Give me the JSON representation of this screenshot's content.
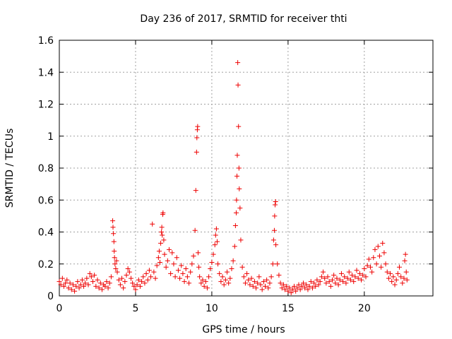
{
  "chart_data": {
    "type": "scatter",
    "title": "Day 236 of 2017, SRMTID for receiver thti",
    "xlabel": "GPS time / hours",
    "ylabel": "SRMTID / TECUs",
    "xlim": [
      0,
      24.5
    ],
    "ylim": [
      0,
      1.6
    ],
    "x_ticks": [
      0,
      5,
      10,
      15,
      20
    ],
    "x_tick_labels": [
      "0",
      "5",
      "10",
      "15",
      "20"
    ],
    "y_ticks": [
      0,
      0.2,
      0.4,
      0.6,
      0.8,
      1.0,
      1.2,
      1.4,
      1.6
    ],
    "y_tick_labels": [
      "0",
      "0.2",
      "0.4",
      "0.6",
      "0.8",
      "1",
      "1.2",
      "1.4",
      "1.6"
    ],
    "grid": true,
    "marker": "+",
    "color": "#ee0000",
    "series": [
      {
        "name": "SRMTID",
        "points": [
          [
            0.0,
            0.09
          ],
          [
            0.1,
            0.07
          ],
          [
            0.2,
            0.11
          ],
          [
            0.3,
            0.06
          ],
          [
            0.4,
            0.08
          ],
          [
            0.5,
            0.1
          ],
          [
            0.6,
            0.05
          ],
          [
            0.7,
            0.08
          ],
          [
            0.8,
            0.04
          ],
          [
            0.9,
            0.07
          ],
          [
            1.0,
            0.03
          ],
          [
            1.1,
            0.06
          ],
          [
            1.2,
            0.09
          ],
          [
            1.3,
            0.05
          ],
          [
            1.4,
            0.07
          ],
          [
            1.5,
            0.1
          ],
          [
            1.6,
            0.06
          ],
          [
            1.7,
            0.08
          ],
          [
            1.8,
            0.11
          ],
          [
            1.9,
            0.07
          ],
          [
            2.0,
            0.14
          ],
          [
            2.1,
            0.12
          ],
          [
            2.2,
            0.09
          ],
          [
            2.3,
            0.13
          ],
          [
            2.4,
            0.06
          ],
          [
            2.5,
            0.1
          ],
          [
            2.6,
            0.05
          ],
          [
            2.7,
            0.08
          ],
          [
            2.8,
            0.04
          ],
          [
            2.9,
            0.07
          ],
          [
            3.0,
            0.06
          ],
          [
            3.1,
            0.09
          ],
          [
            3.2,
            0.05
          ],
          [
            3.3,
            0.08
          ],
          [
            3.4,
            0.12
          ],
          [
            3.5,
            0.47
          ],
          [
            3.52,
            0.43
          ],
          [
            3.55,
            0.39
          ],
          [
            3.58,
            0.34
          ],
          [
            3.6,
            0.28
          ],
          [
            3.62,
            0.24
          ],
          [
            3.65,
            0.2
          ],
          [
            3.7,
            0.17
          ],
          [
            3.75,
            0.22
          ],
          [
            3.8,
            0.15
          ],
          [
            3.9,
            0.1
          ],
          [
            4.0,
            0.07
          ],
          [
            4.1,
            0.11
          ],
          [
            4.2,
            0.05
          ],
          [
            4.3,
            0.09
          ],
          [
            4.4,
            0.13
          ],
          [
            4.5,
            0.17
          ],
          [
            4.6,
            0.15
          ],
          [
            4.7,
            0.11
          ],
          [
            4.8,
            0.08
          ],
          [
            4.9,
            0.06
          ],
          [
            5.0,
            0.04
          ],
          [
            5.1,
            0.07
          ],
          [
            5.2,
            0.1
          ],
          [
            5.3,
            0.06
          ],
          [
            5.4,
            0.09
          ],
          [
            5.5,
            0.12
          ],
          [
            5.6,
            0.08
          ],
          [
            5.7,
            0.14
          ],
          [
            5.8,
            0.1
          ],
          [
            5.9,
            0.16
          ],
          [
            6.0,
            0.12
          ],
          [
            6.1,
            0.45
          ],
          [
            6.2,
            0.15
          ],
          [
            6.3,
            0.11
          ],
          [
            6.4,
            0.19
          ],
          [
            6.5,
            0.24
          ],
          [
            6.55,
            0.28
          ],
          [
            6.6,
            0.21
          ],
          [
            6.65,
            0.33
          ],
          [
            6.7,
            0.4
          ],
          [
            6.72,
            0.43
          ],
          [
            6.75,
            0.38
          ],
          [
            6.78,
            0.51
          ],
          [
            6.8,
            0.52
          ],
          [
            6.85,
            0.35
          ],
          [
            6.9,
            0.26
          ],
          [
            7.0,
            0.18
          ],
          [
            7.1,
            0.22
          ],
          [
            7.2,
            0.29
          ],
          [
            7.3,
            0.14
          ],
          [
            7.4,
            0.27
          ],
          [
            7.5,
            0.2
          ],
          [
            7.6,
            0.12
          ],
          [
            7.7,
            0.24
          ],
          [
            7.8,
            0.16
          ],
          [
            7.9,
            0.11
          ],
          [
            8.0,
            0.19
          ],
          [
            8.1,
            0.14
          ],
          [
            8.2,
            0.09
          ],
          [
            8.3,
            0.17
          ],
          [
            8.4,
            0.12
          ],
          [
            8.5,
            0.08
          ],
          [
            8.6,
            0.15
          ],
          [
            8.7,
            0.2
          ],
          [
            8.8,
            0.25
          ],
          [
            8.9,
            0.41
          ],
          [
            8.95,
            0.66
          ],
          [
            9.0,
            0.9
          ],
          [
            9.02,
            0.99
          ],
          [
            9.05,
            1.04
          ],
          [
            9.07,
            1.06
          ],
          [
            9.1,
            0.27
          ],
          [
            9.15,
            0.18
          ],
          [
            9.2,
            0.12
          ],
          [
            9.3,
            0.08
          ],
          [
            9.4,
            0.1
          ],
          [
            9.5,
            0.06
          ],
          [
            9.6,
            0.09
          ],
          [
            9.7,
            0.05
          ],
          [
            9.8,
            0.12
          ],
          [
            9.9,
            0.17
          ],
          [
            10.0,
            0.21
          ],
          [
            10.1,
            0.26
          ],
          [
            10.2,
            0.32
          ],
          [
            10.25,
            0.38
          ],
          [
            10.3,
            0.42
          ],
          [
            10.35,
            0.34
          ],
          [
            10.4,
            0.2
          ],
          [
            10.5,
            0.14
          ],
          [
            10.6,
            0.09
          ],
          [
            10.7,
            0.12
          ],
          [
            10.8,
            0.07
          ],
          [
            10.9,
            0.1
          ],
          [
            11.0,
            0.15
          ],
          [
            11.1,
            0.08
          ],
          [
            11.2,
            0.11
          ],
          [
            11.3,
            0.17
          ],
          [
            11.4,
            0.22
          ],
          [
            11.5,
            0.31
          ],
          [
            11.55,
            0.44
          ],
          [
            11.6,
            0.52
          ],
          [
            11.62,
            0.6
          ],
          [
            11.65,
            0.75
          ],
          [
            11.67,
            0.88
          ],
          [
            11.7,
            1.46
          ],
          [
            11.72,
            1.32
          ],
          [
            11.75,
            1.06
          ],
          [
            11.78,
            0.8
          ],
          [
            11.8,
            0.67
          ],
          [
            11.85,
            0.55
          ],
          [
            11.9,
            0.35
          ],
          [
            12.0,
            0.18
          ],
          [
            12.1,
            0.12
          ],
          [
            12.2,
            0.08
          ],
          [
            12.3,
            0.14
          ],
          [
            12.4,
            0.1
          ],
          [
            12.5,
            0.07
          ],
          [
            12.6,
            0.11
          ],
          [
            12.7,
            0.06
          ],
          [
            12.8,
            0.09
          ],
          [
            12.9,
            0.05
          ],
          [
            13.0,
            0.08
          ],
          [
            13.1,
            0.12
          ],
          [
            13.2,
            0.07
          ],
          [
            13.3,
            0.04
          ],
          [
            13.4,
            0.09
          ],
          [
            13.5,
            0.06
          ],
          [
            13.6,
            0.1
          ],
          [
            13.7,
            0.05
          ],
          [
            13.8,
            0.08
          ],
          [
            13.9,
            0.12
          ],
          [
            14.0,
            0.2
          ],
          [
            14.05,
            0.35
          ],
          [
            14.1,
            0.41
          ],
          [
            14.12,
            0.5
          ],
          [
            14.15,
            0.57
          ],
          [
            14.18,
            0.59
          ],
          [
            14.2,
            0.32
          ],
          [
            14.3,
            0.2
          ],
          [
            14.4,
            0.13
          ],
          [
            14.5,
            0.08
          ],
          [
            14.6,
            0.05
          ],
          [
            14.7,
            0.07
          ],
          [
            14.8,
            0.04
          ],
          [
            14.9,
            0.06
          ],
          [
            15.0,
            0.03
          ],
          [
            15.1,
            0.05
          ],
          [
            15.2,
            0.02
          ],
          [
            15.3,
            0.04
          ],
          [
            15.4,
            0.06
          ],
          [
            15.5,
            0.03
          ],
          [
            15.6,
            0.05
          ],
          [
            15.7,
            0.07
          ],
          [
            15.8,
            0.04
          ],
          [
            15.9,
            0.06
          ],
          [
            16.0,
            0.08
          ],
          [
            16.1,
            0.05
          ],
          [
            16.2,
            0.07
          ],
          [
            16.3,
            0.04
          ],
          [
            16.4,
            0.06
          ],
          [
            16.5,
            0.09
          ],
          [
            16.6,
            0.05
          ],
          [
            16.7,
            0.08
          ],
          [
            16.8,
            0.06
          ],
          [
            16.9,
            0.1
          ],
          [
            17.0,
            0.07
          ],
          [
            17.1,
            0.09
          ],
          [
            17.2,
            0.12
          ],
          [
            17.3,
            0.15
          ],
          [
            17.4,
            0.11
          ],
          [
            17.5,
            0.08
          ],
          [
            17.6,
            0.12
          ],
          [
            17.7,
            0.09
          ],
          [
            17.8,
            0.06
          ],
          [
            17.9,
            0.1
          ],
          [
            18.0,
            0.13
          ],
          [
            18.1,
            0.08
          ],
          [
            18.2,
            0.11
          ],
          [
            18.3,
            0.07
          ],
          [
            18.4,
            0.1
          ],
          [
            18.5,
            0.14
          ],
          [
            18.6,
            0.09
          ],
          [
            18.7,
            0.12
          ],
          [
            18.8,
            0.08
          ],
          [
            18.9,
            0.11
          ],
          [
            19.0,
            0.15
          ],
          [
            19.1,
            0.1
          ],
          [
            19.2,
            0.13
          ],
          [
            19.3,
            0.09
          ],
          [
            19.4,
            0.12
          ],
          [
            19.5,
            0.16
          ],
          [
            19.6,
            0.11
          ],
          [
            19.7,
            0.14
          ],
          [
            19.8,
            0.1
          ],
          [
            19.9,
            0.13
          ],
          [
            20.0,
            0.17
          ],
          [
            20.1,
            0.12
          ],
          [
            20.2,
            0.19
          ],
          [
            20.3,
            0.23
          ],
          [
            20.4,
            0.18
          ],
          [
            20.5,
            0.15
          ],
          [
            20.6,
            0.24
          ],
          [
            20.7,
            0.29
          ],
          [
            20.8,
            0.2
          ],
          [
            20.9,
            0.31
          ],
          [
            21.0,
            0.25
          ],
          [
            21.1,
            0.18
          ],
          [
            21.2,
            0.33
          ],
          [
            21.3,
            0.27
          ],
          [
            21.4,
            0.2
          ],
          [
            21.5,
            0.15
          ],
          [
            21.6,
            0.11
          ],
          [
            21.7,
            0.14
          ],
          [
            21.8,
            0.09
          ],
          [
            21.9,
            0.12
          ],
          [
            22.0,
            0.07
          ],
          [
            22.1,
            0.1
          ],
          [
            22.2,
            0.14
          ],
          [
            22.3,
            0.18
          ],
          [
            22.4,
            0.12
          ],
          [
            22.5,
            0.08
          ],
          [
            22.6,
            0.11
          ],
          [
            22.65,
            0.22
          ],
          [
            22.7,
            0.26
          ],
          [
            22.75,
            0.15
          ],
          [
            22.8,
            0.1
          ]
        ]
      }
    ]
  }
}
